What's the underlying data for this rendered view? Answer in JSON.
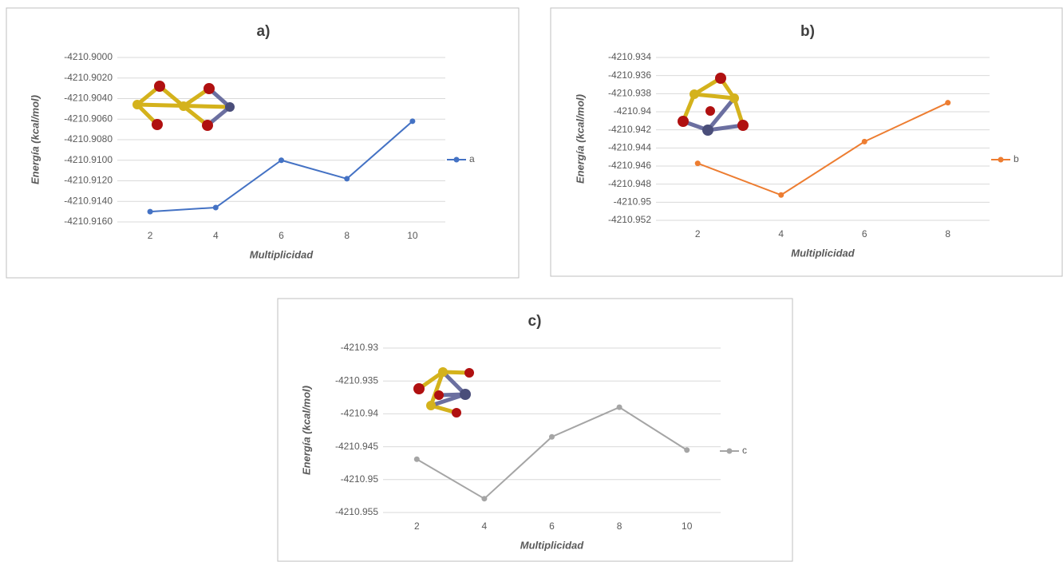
{
  "chart_data": [
    {
      "type": "line",
      "title": "a)",
      "x_label": "Multiplicidad",
      "y_label": "Energía (kcal/mol)",
      "categories": [
        2,
        4,
        6,
        8,
        10
      ],
      "series": [
        {
          "name": "a",
          "color": "#4472c4",
          "values": [
            -4210.915,
            -4210.9146,
            -4210.91,
            -4210.9118,
            -4210.9062
          ]
        }
      ],
      "ylim": [
        -4210.916,
        -4210.9
      ],
      "yticks": [
        {
          "value": -4210.9,
          "label": "-4210.9000"
        },
        {
          "value": -4210.902,
          "label": "-4210.9020"
        },
        {
          "value": -4210.904,
          "label": "-4210.9040"
        },
        {
          "value": -4210.906,
          "label": "-4210.9060"
        },
        {
          "value": -4210.908,
          "label": "-4210.9080"
        },
        {
          "value": -4210.91,
          "label": "-4210.9100"
        },
        {
          "value": -4210.912,
          "label": "-4210.9120"
        },
        {
          "value": -4210.914,
          "label": "-4210.9140"
        },
        {
          "value": -4210.916,
          "label": "-4210.9160"
        }
      ],
      "grid": true,
      "legend": "right"
    },
    {
      "type": "line",
      "title": "b)",
      "x_label": "Multiplicidad",
      "y_label": "Energía (kcal/mol)",
      "categories": [
        2,
        4,
        6,
        8
      ],
      "series": [
        {
          "name": "b",
          "color": "#ed7d31",
          "values": [
            -4210.9457,
            -4210.9492,
            -4210.9433,
            -4210.939
          ]
        }
      ],
      "ylim": [
        -4210.952,
        -4210.934
      ],
      "yticks": [
        -4210.934,
        -4210.936,
        -4210.938,
        -4210.94,
        -4210.942,
        -4210.944,
        -4210.946,
        -4210.948,
        -4210.95,
        -4210.952
      ],
      "grid": true,
      "legend": "right"
    },
    {
      "type": "line",
      "title": "c)",
      "x_label": "Multiplicidad",
      "y_label": "Energía (kcal/mol)",
      "categories": [
        2,
        4,
        6,
        8,
        10
      ],
      "series": [
        {
          "name": "c",
          "color": "#a5a5a5",
          "values": [
            -4210.9469,
            -4210.9529,
            -4210.9435,
            -4210.939,
            -4210.9455
          ]
        }
      ],
      "ylim": [
        -4210.955,
        -4210.93
      ],
      "yticks": [
        -4210.93,
        -4210.935,
        -4210.94,
        -4210.945,
        -4210.95,
        -4210.955
      ],
      "grid": true,
      "legend": "right"
    }
  ]
}
